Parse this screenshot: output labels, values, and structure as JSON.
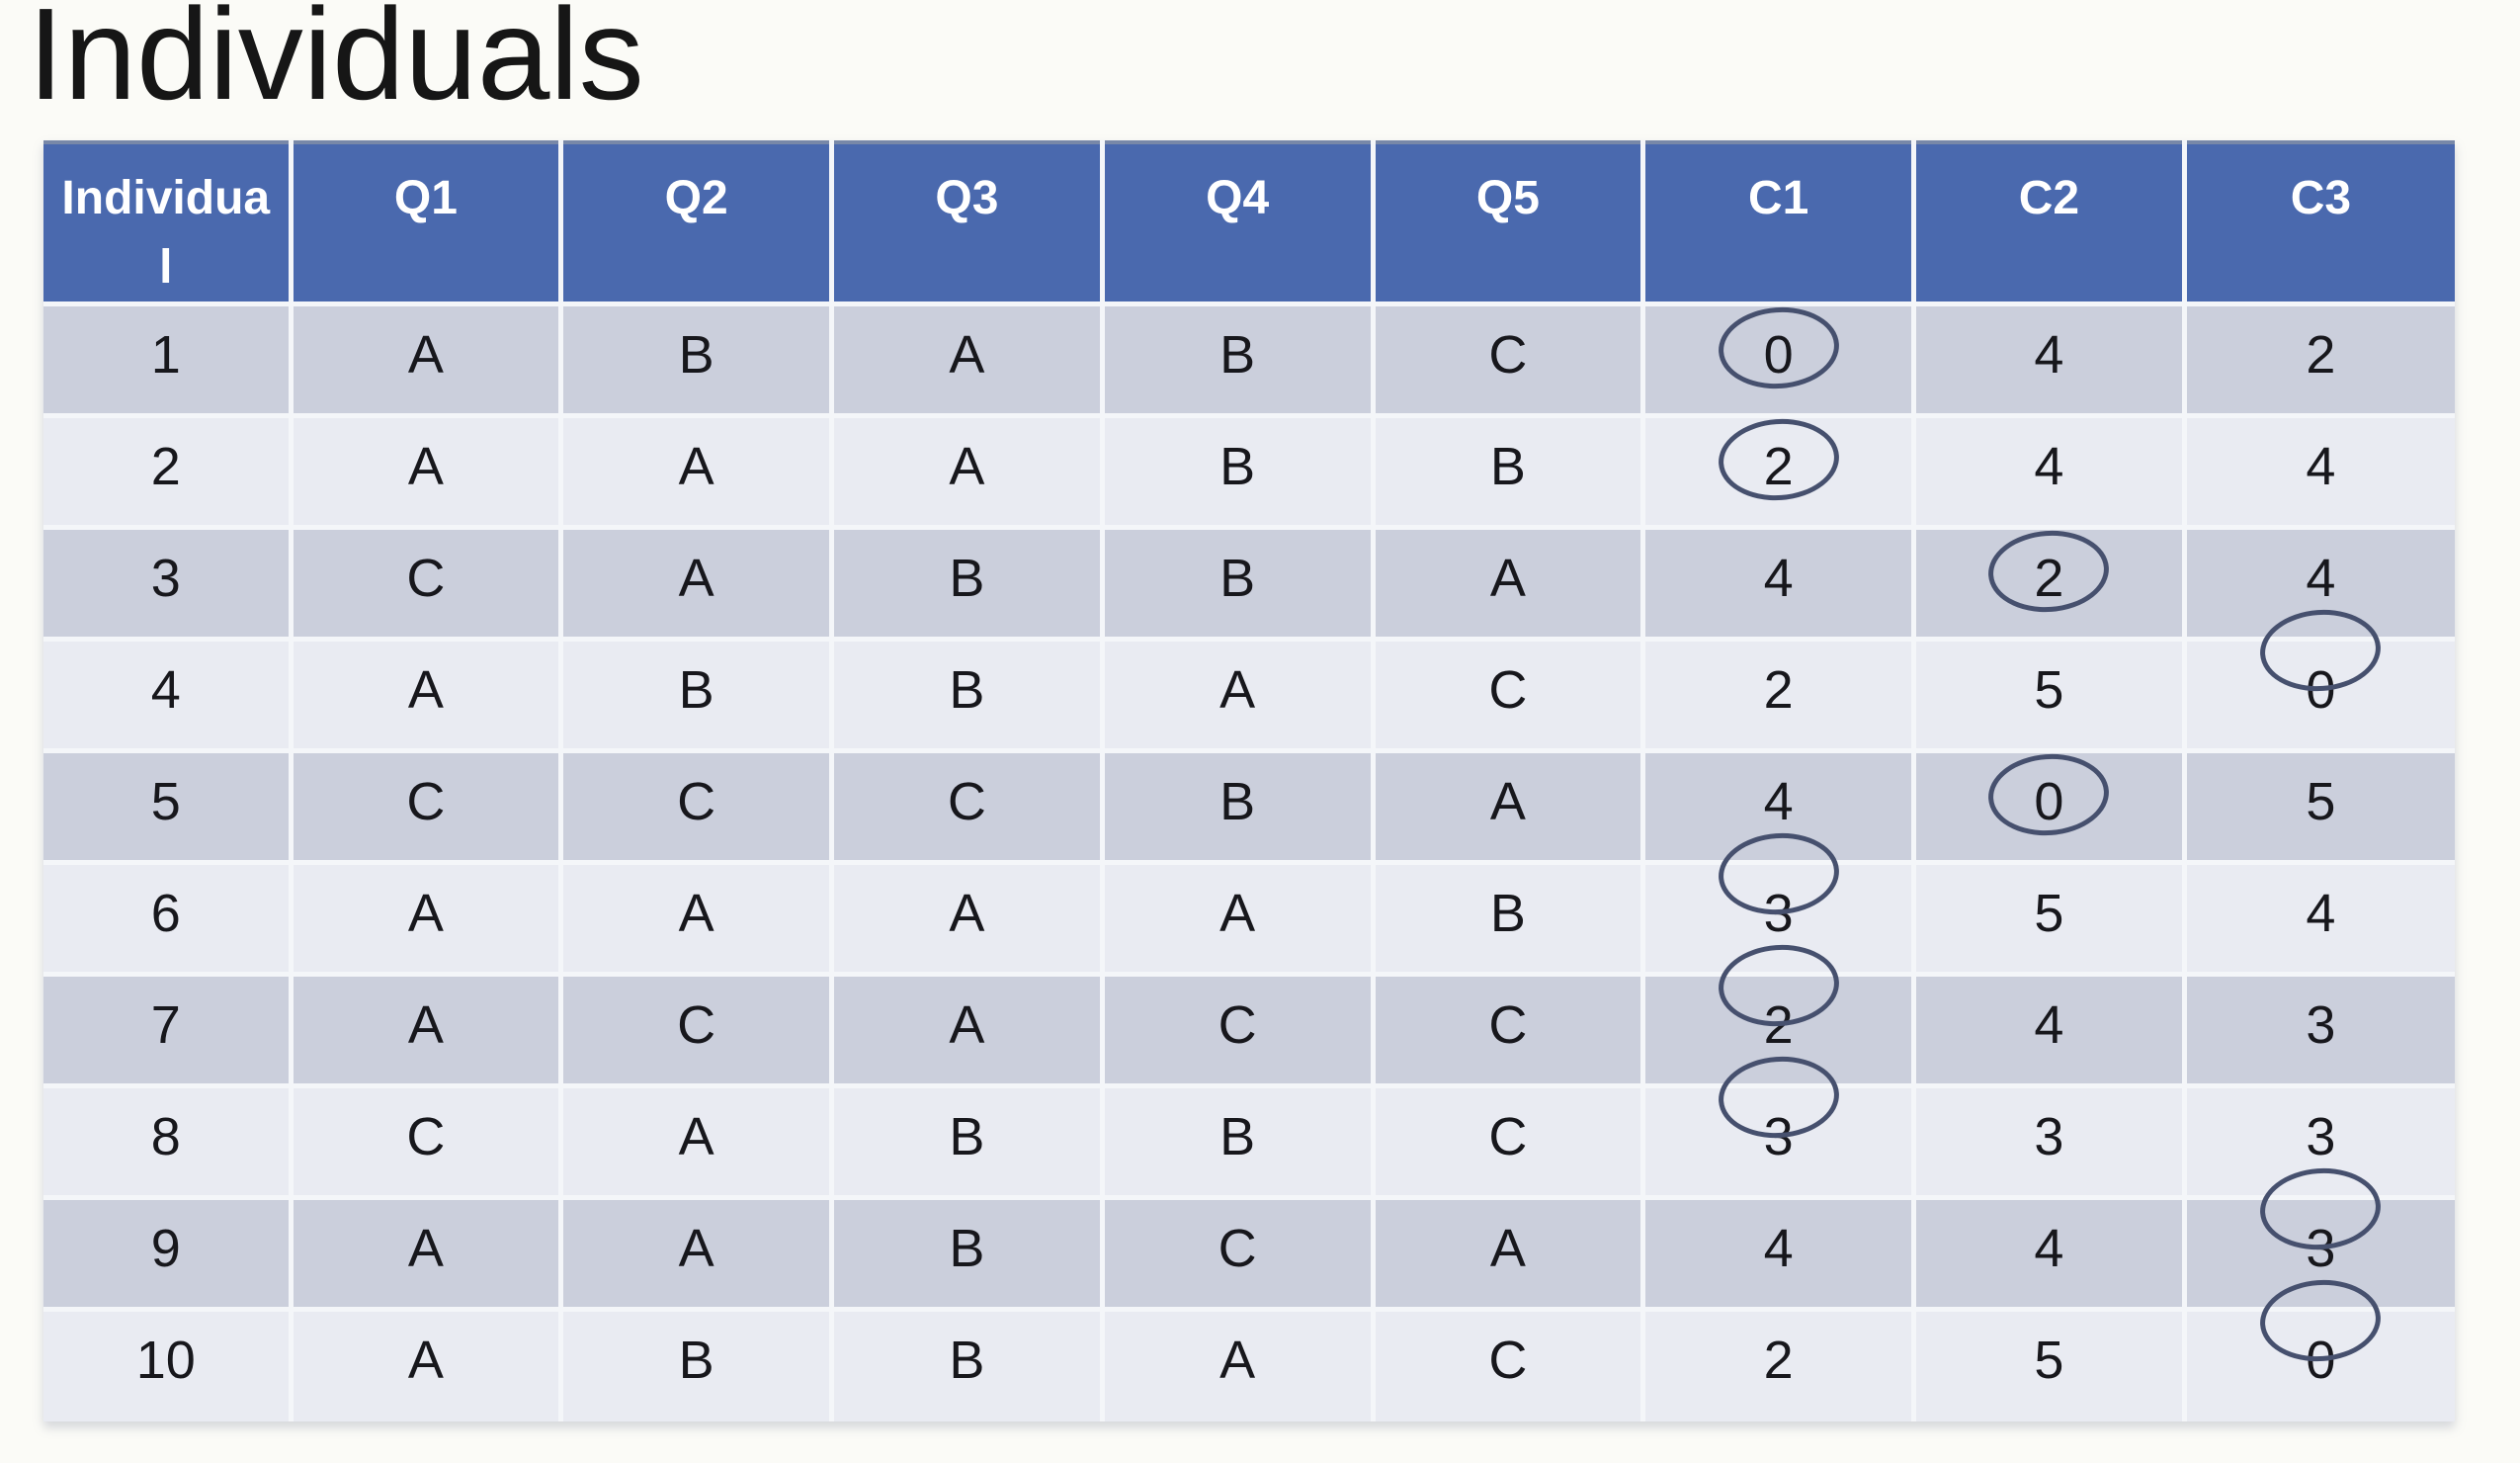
{
  "page_title": "Individuals",
  "table": {
    "columns": [
      "Individual",
      "Q1",
      "Q2",
      "Q3",
      "Q4",
      "Q5",
      "C1",
      "C2",
      "C3"
    ],
    "rows": [
      {
        "cells": [
          "1",
          "A",
          "B",
          "A",
          "B",
          "C",
          "0",
          "4",
          "2"
        ],
        "circled_col": 6,
        "circle_pos": "center"
      },
      {
        "cells": [
          "2",
          "A",
          "A",
          "A",
          "B",
          "B",
          "2",
          "4",
          "4"
        ],
        "circled_col": 6,
        "circle_pos": "center"
      },
      {
        "cells": [
          "3",
          "C",
          "A",
          "B",
          "B",
          "A",
          "4",
          "2",
          "4"
        ],
        "circled_col": 7,
        "circle_pos": "center"
      },
      {
        "cells": [
          "4",
          "A",
          "B",
          "B",
          "A",
          "C",
          "2",
          "5",
          "0"
        ],
        "circled_col": 8,
        "circle_pos": "high"
      },
      {
        "cells": [
          "5",
          "C",
          "C",
          "C",
          "B",
          "A",
          "4",
          "0",
          "5"
        ],
        "circled_col": 7,
        "circle_pos": "center"
      },
      {
        "cells": [
          "6",
          "A",
          "A",
          "A",
          "A",
          "B",
          "3",
          "5",
          "4"
        ],
        "circled_col": 6,
        "circle_pos": "high"
      },
      {
        "cells": [
          "7",
          "A",
          "C",
          "A",
          "C",
          "C",
          "2",
          "4",
          "3"
        ],
        "circled_col": 6,
        "circle_pos": "high"
      },
      {
        "cells": [
          "8",
          "C",
          "A",
          "B",
          "B",
          "C",
          "3",
          "3",
          "3"
        ],
        "circled_col": 6,
        "circle_pos": "high"
      },
      {
        "cells": [
          "9",
          "A",
          "A",
          "B",
          "C",
          "A",
          "4",
          "4",
          "3"
        ],
        "circled_col": 8,
        "circle_pos": "high"
      },
      {
        "cells": [
          "10",
          "A",
          "B",
          "B",
          "A",
          "C",
          "2",
          "5",
          "0"
        ],
        "circled_col": 8,
        "circle_pos": "high"
      }
    ]
  },
  "colors": {
    "header_bg": "#4a69ae",
    "row_dark": "#cbcfdc",
    "row_light": "#e9ebf2",
    "grid_line": "#f4f6f9",
    "circle_stroke": "#46506e",
    "slide_background": "#fbfbf7",
    "cell_text": "#17171c",
    "header_text": "#ffffff"
  }
}
